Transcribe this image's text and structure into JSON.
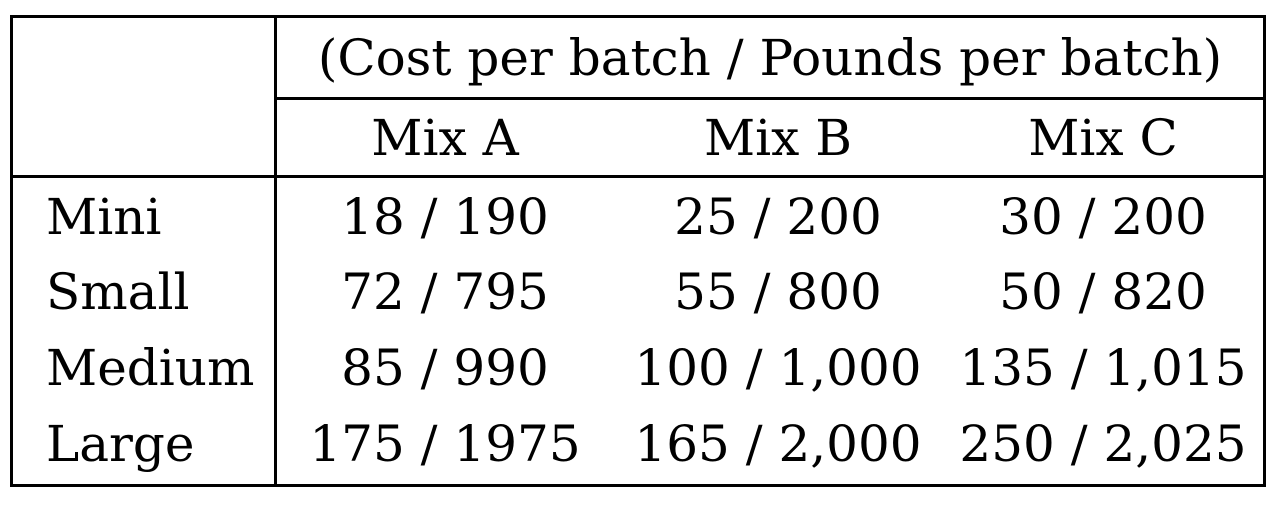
{
  "table": {
    "group_header": "(Cost per batch / Pounds per batch)",
    "columns": [
      "Mix A",
      "Mix B",
      "Mix C"
    ],
    "rows": [
      {
        "label": "Mini",
        "cells": [
          "18 / 190",
          "25 / 200",
          "30 / 200"
        ]
      },
      {
        "label": "Small",
        "cells": [
          "72 / 795",
          "55 / 800",
          "50 / 820"
        ]
      },
      {
        "label": "Medium",
        "cells": [
          "85 / 990",
          "100 / 1,000",
          "135 / 1,015"
        ]
      },
      {
        "label": "Large",
        "cells": [
          "175 / 1975",
          "165 / 2,000",
          "250 / 2,025"
        ]
      }
    ]
  }
}
